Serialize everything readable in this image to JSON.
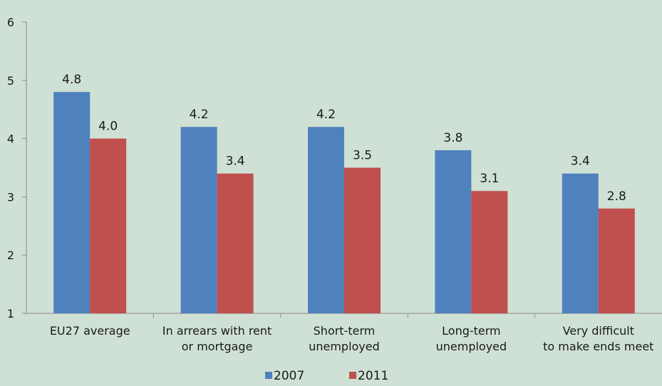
{
  "chart_data": {
    "type": "bar",
    "categories": [
      [
        "EU27 average"
      ],
      [
        "In arrears with rent",
        "or mortgage"
      ],
      [
        "Short-term",
        "unemployed"
      ],
      [
        "Long-term",
        "unemployed"
      ],
      [
        "Very difficult",
        "to make ends meet"
      ]
    ],
    "series": [
      {
        "name": "2007",
        "values": [
          4.8,
          4.2,
          4.2,
          3.8,
          3.4
        ],
        "labels": [
          "4.8",
          "4.2",
          "4.2",
          "3.8",
          "3.4"
        ],
        "color": "#4f81bd"
      },
      {
        "name": "2011",
        "values": [
          4.0,
          3.4,
          3.5,
          3.1,
          2.8
        ],
        "labels": [
          "4.0",
          "3.4",
          "3.5",
          "3.1",
          "2.8"
        ],
        "color": "#c0504d"
      }
    ],
    "ylim": [
      1,
      6
    ],
    "yticks": [
      "1",
      "2",
      "3",
      "4",
      "5",
      "6"
    ],
    "grid": false,
    "legend_position": "bottom"
  }
}
